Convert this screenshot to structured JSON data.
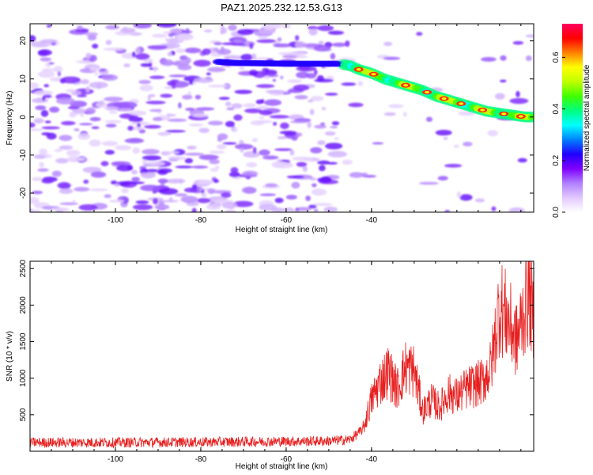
{
  "figure": {
    "title": "PAZ1.2025.232.12.53.G13"
  },
  "chart_data": [
    {
      "type": "heatmap",
      "xlabel": "Height of straight line (km)",
      "ylabel": "Frequency (Hz)",
      "xlim": [
        -120,
        -2
      ],
      "ylim": [
        -25,
        24.5
      ],
      "x_ticks": [
        -100,
        -80,
        -60,
        -40
      ],
      "y_ticks": [
        -20,
        -10,
        0,
        10,
        20
      ],
      "colorbar": {
        "label": "Normalized spectral amplitude",
        "range": [
          0,
          0.73
        ],
        "ticks": [
          0.0,
          0.2,
          0.4,
          0.6
        ],
        "colormap": [
          "#ffffff",
          "#e3c8ff",
          "#b080ff",
          "#8000ff",
          "#2000ff",
          "#0080ff",
          "#00ffff",
          "#00ff80",
          "#40ff00",
          "#c0ff00",
          "#ffff00",
          "#ff8000",
          "#ff0000",
          "#ff0060"
        ]
      },
      "signal_track": {
        "description_points_x": [
          -76,
          -72,
          -60,
          -52,
          -48,
          -45,
          -43,
          -40,
          -37,
          -34,
          -31,
          -28,
          -25,
          -22,
          -19,
          -16,
          -13,
          -10,
          -7,
          -4
        ],
        "description_points_y": [
          14.5,
          14.2,
          14,
          14,
          14,
          13.5,
          12.5,
          11.5,
          10,
          9,
          8,
          7,
          5.5,
          4.5,
          3.5,
          2.5,
          1.5,
          1,
          0.5,
          0
        ]
      }
    },
    {
      "type": "line",
      "xlabel": "Height of straight line (km)",
      "ylabel": "SNR (10 * v/v)",
      "xlim": [
        -120,
        -2
      ],
      "ylim": [
        0,
        2600
      ],
      "x_ticks": [
        -100,
        -80,
        -60,
        -40
      ],
      "y_ticks": [
        500,
        1000,
        1500,
        2000,
        2500
      ],
      "color": "#e82020",
      "envelope": {
        "x": [
          -120,
          -100,
          -80,
          -60,
          -50,
          -45,
          -42,
          -40,
          -38,
          -36,
          -34,
          -32,
          -30,
          -28,
          -26,
          -24,
          -22,
          -20,
          -18,
          -16,
          -14,
          -12,
          -10,
          -8,
          -6,
          -4,
          -3,
          -2
        ],
        "y": [
          120,
          120,
          125,
          135,
          140,
          160,
          300,
          700,
          950,
          1100,
          850,
          1150,
          1100,
          550,
          700,
          600,
          800,
          750,
          850,
          900,
          950,
          1150,
          2000,
          1800,
          1500,
          2000,
          2200,
          1700
        ]
      }
    }
  ]
}
